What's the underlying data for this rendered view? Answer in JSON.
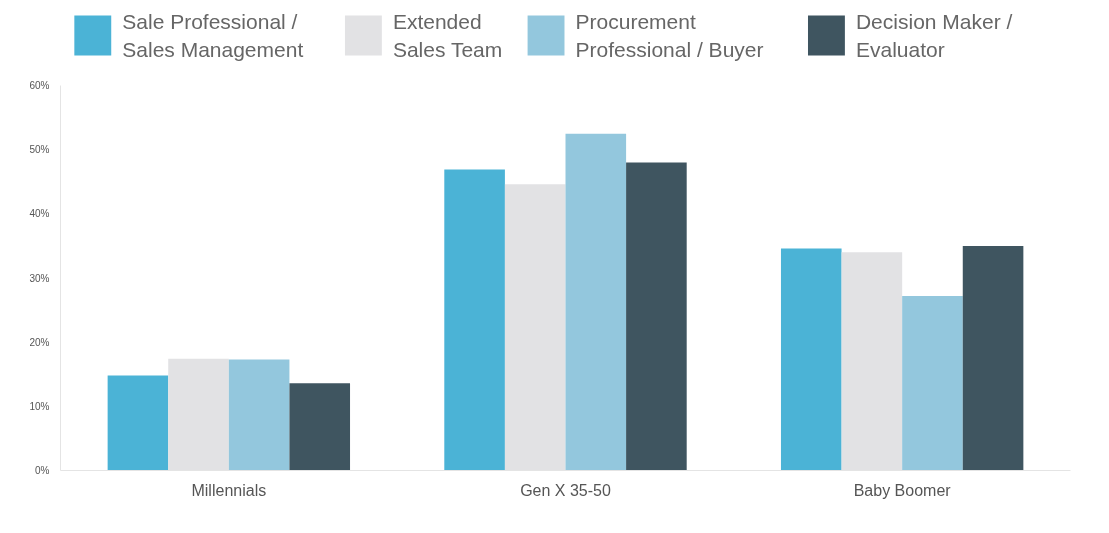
{
  "chart_data": {
    "type": "bar",
    "categories": [
      "Millennials",
      "Gen X 35-50",
      "Baby Boomer"
    ],
    "series": [
      {
        "name": "Sale Professional / Sales Management",
        "color": "#4bb3d6",
        "values": [
          14.8,
          46.9,
          34.6
        ]
      },
      {
        "name": "Extended Sales Team",
        "color": "#e2e2e4",
        "values": [
          17.4,
          44.6,
          34.0
        ]
      },
      {
        "name": "Procurement Professional / Buyer",
        "color": "#93c7dd",
        "values": [
          17.3,
          52.5,
          27.2
        ]
      },
      {
        "name": "Decision Maker / Evaluator",
        "color": "#3f5560",
        "values": [
          13.6,
          48.0,
          35.0
        ]
      }
    ],
    "ylim": [
      0,
      60
    ],
    "yticks": [
      {
        "value": 0,
        "label": "0%"
      },
      {
        "value": 10,
        "label": "10%"
      },
      {
        "value": 20,
        "label": "20%"
      },
      {
        "value": 30,
        "label": "30%"
      },
      {
        "value": 40,
        "label": "40%"
      },
      {
        "value": 50,
        "label": "50%"
      },
      {
        "value": 60,
        "label": "60%"
      }
    ],
    "grid": false,
    "legend": "top"
  }
}
